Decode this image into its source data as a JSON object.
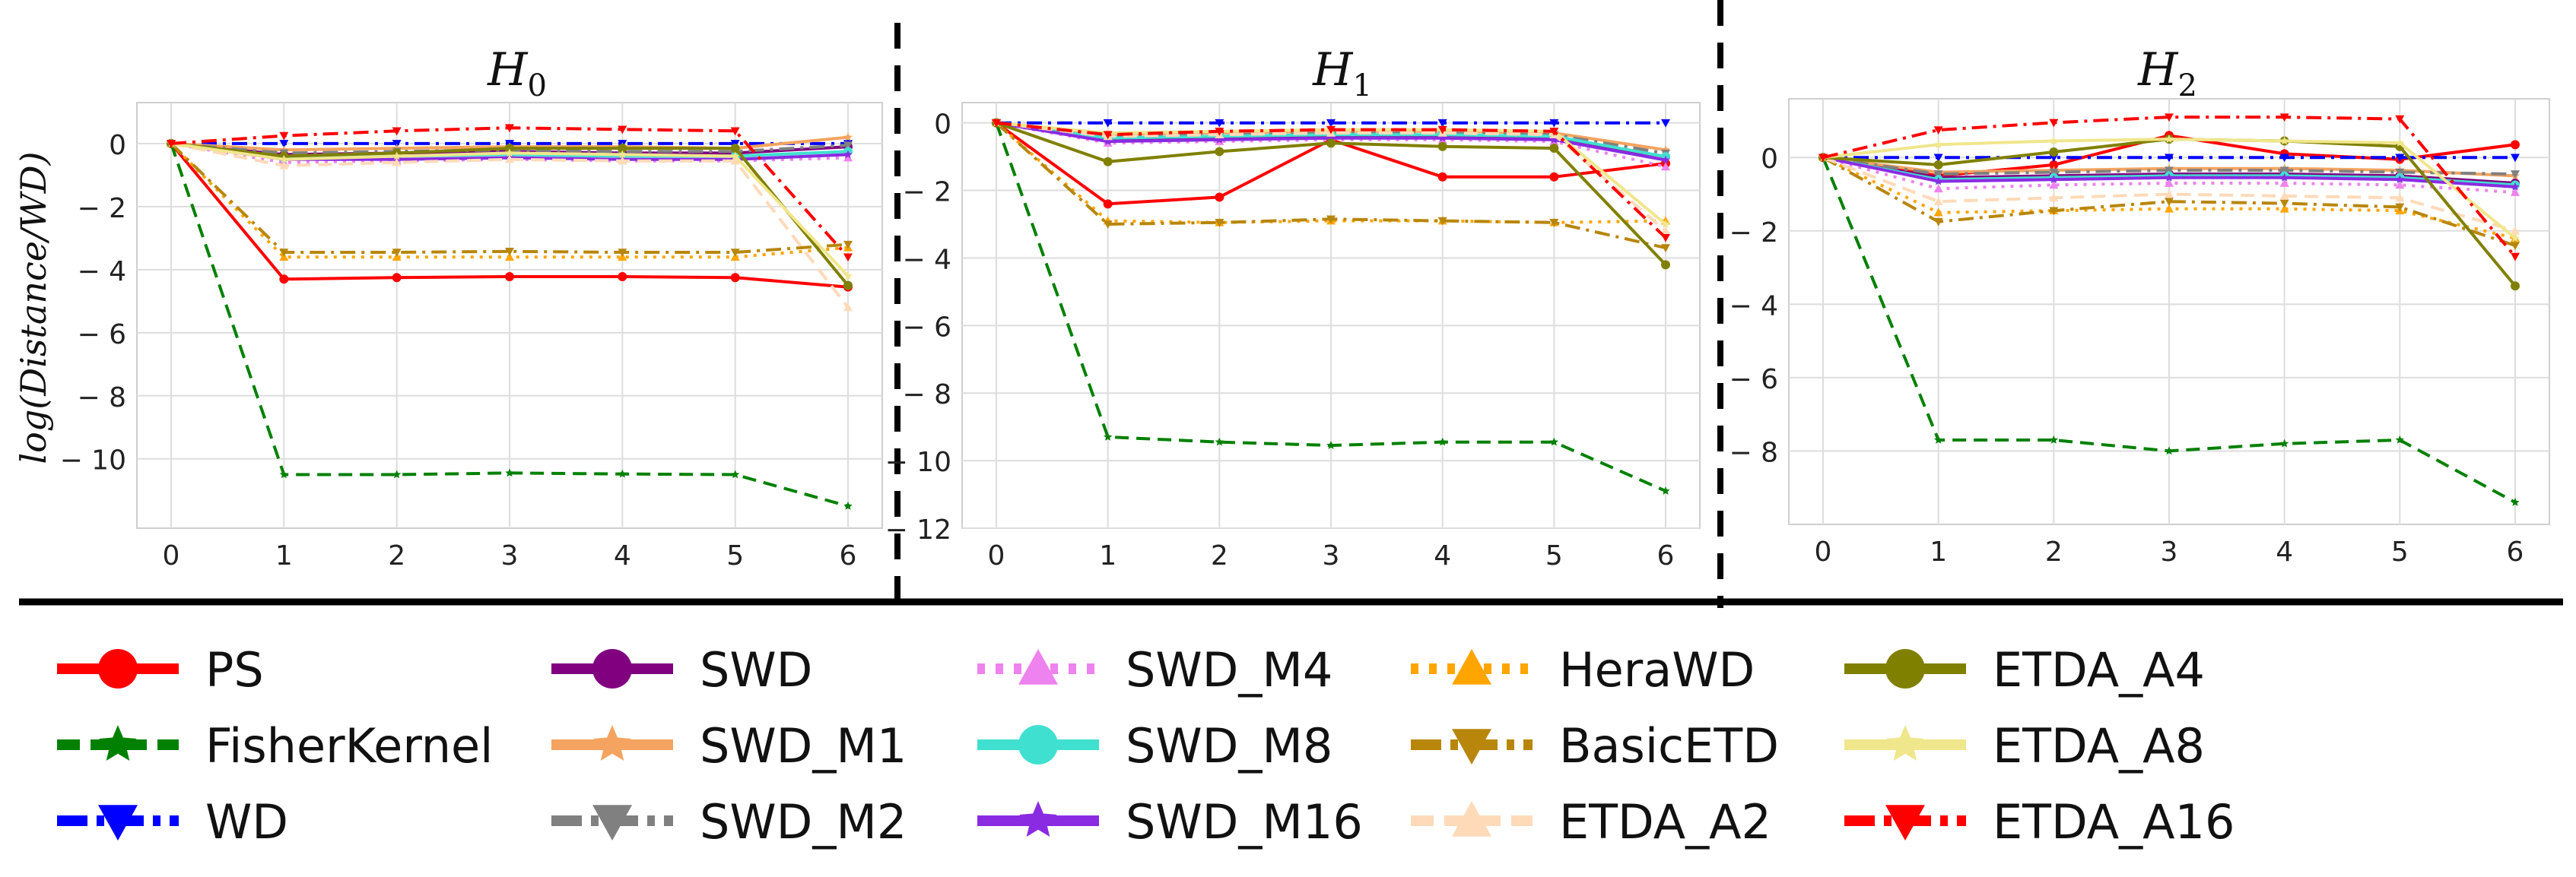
{
  "chart_data": [
    {
      "type": "line",
      "title": "H0",
      "title_main": "H",
      "title_sub": "0",
      "ylabel": "log(Distance/WD)",
      "xlabel": "",
      "x": [
        0,
        1,
        2,
        3,
        4,
        5,
        6
      ],
      "xticks": [
        "0",
        "1",
        "2",
        "3",
        "4",
        "5",
        "6"
      ],
      "ylim": [
        -12.2,
        1.3
      ],
      "yticks": [
        0,
        -2,
        -4,
        -6,
        -8,
        -10
      ],
      "ytick_labels": [
        "0",
        "− 2",
        "− 4",
        "− 6",
        "− 8",
        "− 10"
      ],
      "series": [
        {
          "name": "PS",
          "values": [
            0,
            -4.3,
            -4.25,
            -4.22,
            -4.22,
            -4.25,
            -4.55
          ]
        },
        {
          "name": "FisherKernel",
          "values": [
            0,
            -10.5,
            -10.5,
            -10.45,
            -10.48,
            -10.5,
            -11.5
          ]
        },
        {
          "name": "WD",
          "values": [
            0,
            0,
            0,
            0,
            0,
            0,
            0
          ]
        },
        {
          "name": "SWD",
          "values": [
            0,
            -0.35,
            -0.3,
            -0.25,
            -0.3,
            -0.3,
            -0.1
          ]
        },
        {
          "name": "SWD_M1",
          "values": [
            0,
            -0.2,
            -0.15,
            -0.1,
            -0.1,
            -0.15,
            0.2
          ]
        },
        {
          "name": "SWD_M2",
          "values": [
            0,
            -0.3,
            -0.25,
            -0.2,
            -0.25,
            -0.25,
            -0.05
          ]
        },
        {
          "name": "SWD_M4",
          "values": [
            0,
            -0.6,
            -0.55,
            -0.5,
            -0.55,
            -0.55,
            -0.45
          ]
        },
        {
          "name": "SWD_M8",
          "values": [
            0,
            -0.45,
            -0.4,
            -0.35,
            -0.4,
            -0.4,
            -0.25
          ]
        },
        {
          "name": "SWD_M16",
          "values": [
            0,
            -0.5,
            -0.5,
            -0.45,
            -0.5,
            -0.5,
            -0.35
          ]
        },
        {
          "name": "HeraWD",
          "values": [
            0,
            -3.6,
            -3.6,
            -3.6,
            -3.6,
            -3.6,
            -3.3
          ]
        },
        {
          "name": "BasicETD",
          "values": [
            0,
            -3.45,
            -3.45,
            -3.42,
            -3.45,
            -3.45,
            -3.2
          ]
        },
        {
          "name": "ETDA_A2",
          "values": [
            0,
            -0.7,
            -0.6,
            -0.5,
            -0.55,
            -0.55,
            -5.2
          ]
        },
        {
          "name": "ETDA_A4",
          "values": [
            0,
            -0.4,
            -0.3,
            -0.15,
            -0.15,
            -0.15,
            -4.5
          ]
        },
        {
          "name": "ETDA_A8",
          "values": [
            0,
            -0.5,
            -0.4,
            -0.3,
            -0.35,
            -0.4,
            -4.2
          ]
        },
        {
          "name": "ETDA_A16",
          "values": [
            0,
            0.25,
            0.4,
            0.5,
            0.45,
            0.4,
            -3.6
          ]
        }
      ]
    },
    {
      "type": "line",
      "title": "H1",
      "title_main": "H",
      "title_sub": "1",
      "ylabel": "",
      "xlabel": "",
      "x": [
        0,
        1,
        2,
        3,
        4,
        5,
        6
      ],
      "xticks": [
        "0",
        "1",
        "2",
        "3",
        "4",
        "5",
        "6"
      ],
      "ylim": [
        -12,
        0.6
      ],
      "yticks": [
        0,
        -2,
        -4,
        -6,
        -8,
        -10,
        -12
      ],
      "ytick_labels": [
        "0",
        "− 2",
        "− 4",
        "− 6",
        "− 8",
        "− 10",
        "− 12"
      ],
      "series": [
        {
          "name": "PS",
          "values": [
            0,
            -2.4,
            -2.2,
            -0.5,
            -1.6,
            -1.6,
            -1.2
          ]
        },
        {
          "name": "FisherKernel",
          "values": [
            0,
            -9.3,
            -9.45,
            -9.55,
            -9.45,
            -9.45,
            -10.9
          ]
        },
        {
          "name": "WD",
          "values": [
            0,
            0,
            0,
            0,
            0,
            0,
            0
          ]
        },
        {
          "name": "SWD",
          "values": [
            0,
            -0.5,
            -0.45,
            -0.4,
            -0.4,
            -0.45,
            -1.0
          ]
        },
        {
          "name": "SWD_M1",
          "values": [
            0,
            -0.35,
            -0.3,
            -0.25,
            -0.25,
            -0.3,
            -0.8
          ]
        },
        {
          "name": "SWD_M2",
          "values": [
            0,
            -0.4,
            -0.35,
            -0.3,
            -0.3,
            -0.35,
            -0.9
          ]
        },
        {
          "name": "SWD_M4",
          "values": [
            0,
            -0.6,
            -0.55,
            -0.5,
            -0.5,
            -0.55,
            -1.3
          ]
        },
        {
          "name": "SWD_M8",
          "values": [
            0,
            -0.45,
            -0.4,
            -0.35,
            -0.35,
            -0.4,
            -1.0
          ]
        },
        {
          "name": "SWD_M16",
          "values": [
            0,
            -0.55,
            -0.5,
            -0.45,
            -0.45,
            -0.5,
            -1.1
          ]
        },
        {
          "name": "HeraWD",
          "values": [
            0,
            -2.9,
            -2.95,
            -2.9,
            -2.9,
            -2.95,
            -2.9
          ]
        },
        {
          "name": "BasicETD",
          "values": [
            0,
            -3.0,
            -2.95,
            -2.85,
            -2.9,
            -2.95,
            -3.7
          ]
        },
        {
          "name": "ETDA_A2",
          "values": [
            0,
            -0.4,
            -0.35,
            -0.3,
            -0.3,
            -0.35,
            -3.2
          ]
        },
        {
          "name": "ETDA_A4",
          "values": [
            0,
            -1.15,
            -0.85,
            -0.6,
            -0.7,
            -0.75,
            -4.2
          ]
        },
        {
          "name": "ETDA_A8",
          "values": [
            0,
            -0.3,
            -0.25,
            -0.2,
            -0.2,
            -0.25,
            -3.0
          ]
        },
        {
          "name": "ETDA_A16",
          "values": [
            0,
            -0.35,
            -0.25,
            -0.2,
            -0.2,
            -0.25,
            -3.4
          ]
        }
      ]
    },
    {
      "type": "line",
      "title": "H2",
      "title_main": "H",
      "title_sub": "2",
      "ylabel": "",
      "xlabel": "",
      "x": [
        0,
        1,
        2,
        3,
        4,
        5,
        6
      ],
      "xticks": [
        "0",
        "1",
        "2",
        "3",
        "4",
        "5",
        "6"
      ],
      "ylim": [
        -10,
        1.6
      ],
      "yticks": [
        0,
        -2,
        -4,
        -6,
        -8
      ],
      "ytick_labels": [
        "0",
        "− 2",
        "− 4",
        "− 6",
        "− 8"
      ],
      "series": [
        {
          "name": "PS",
          "values": [
            0,
            -0.5,
            -0.2,
            0.6,
            0.1,
            -0.05,
            0.35
          ]
        },
        {
          "name": "FisherKernel",
          "values": [
            0,
            -7.7,
            -7.7,
            -8.0,
            -7.8,
            -7.7,
            -9.4
          ]
        },
        {
          "name": "WD",
          "values": [
            0,
            0,
            0,
            0,
            0,
            0,
            0
          ]
        },
        {
          "name": "SWD",
          "values": [
            0,
            -0.55,
            -0.5,
            -0.45,
            -0.45,
            -0.5,
            -0.7
          ]
        },
        {
          "name": "SWD_M1",
          "values": [
            0,
            -0.4,
            -0.35,
            -0.3,
            -0.3,
            -0.35,
            -0.5
          ]
        },
        {
          "name": "SWD_M2",
          "values": [
            0,
            -0.45,
            -0.4,
            -0.35,
            -0.35,
            -0.4,
            -0.45
          ]
        },
        {
          "name": "SWD_M4",
          "values": [
            0,
            -0.85,
            -0.75,
            -0.7,
            -0.7,
            -0.75,
            -0.95
          ]
        },
        {
          "name": "SWD_M8",
          "values": [
            0,
            -0.6,
            -0.55,
            -0.5,
            -0.5,
            -0.55,
            -0.75
          ]
        },
        {
          "name": "SWD_M16",
          "values": [
            0,
            -0.65,
            -0.6,
            -0.55,
            -0.55,
            -0.6,
            -0.8
          ]
        },
        {
          "name": "HeraWD",
          "values": [
            0,
            -1.5,
            -1.45,
            -1.4,
            -1.4,
            -1.45,
            -2.2
          ]
        },
        {
          "name": "BasicETD",
          "values": [
            0,
            -1.75,
            -1.45,
            -1.2,
            -1.25,
            -1.35,
            -2.4
          ]
        },
        {
          "name": "ETDA_A2",
          "values": [
            0,
            -1.2,
            -1.1,
            -1.0,
            -1.05,
            -1.1,
            -2.0
          ]
        },
        {
          "name": "ETDA_A4",
          "values": [
            0,
            -0.2,
            0.15,
            0.5,
            0.45,
            0.3,
            -3.5
          ]
        },
        {
          "name": "ETDA_A8",
          "values": [
            0,
            0.35,
            0.45,
            0.5,
            0.45,
            0.4,
            -2.2
          ]
        },
        {
          "name": "ETDA_A16",
          "values": [
            0,
            0.75,
            0.95,
            1.1,
            1.1,
            1.05,
            -2.7
          ]
        }
      ]
    }
  ],
  "legend": {
    "entries": [
      {
        "name": "PS",
        "color": "#ff0000",
        "marker": "circle",
        "dash": "solid"
      },
      {
        "name": "FisherKernel",
        "color": "#008000",
        "marker": "star",
        "dash": "dashed"
      },
      {
        "name": "WD",
        "color": "#0000ff",
        "marker": "triangle-down",
        "dash": "dashdot"
      },
      {
        "name": "SWD",
        "color": "#800080",
        "marker": "circle",
        "dash": "solid"
      },
      {
        "name": "SWD_M1",
        "color": "#f4a460",
        "marker": "star",
        "dash": "solid"
      },
      {
        "name": "SWD_M2",
        "color": "#808080",
        "marker": "triangle-down",
        "dash": "dashdot"
      },
      {
        "name": "SWD_M4",
        "color": "#ee82ee",
        "marker": "triangle-up",
        "dash": "dotted"
      },
      {
        "name": "SWD_M8",
        "color": "#40e0d0",
        "marker": "circle",
        "dash": "solid"
      },
      {
        "name": "SWD_M16",
        "color": "#8a2be2",
        "marker": "star",
        "dash": "solid"
      },
      {
        "name": "HeraWD",
        "color": "#ffa500",
        "marker": "triangle-up",
        "dash": "dotted"
      },
      {
        "name": "BasicETD",
        "color": "#b8860b",
        "marker": "triangle-down",
        "dash": "dashdot"
      },
      {
        "name": "ETDA_A2",
        "color": "#ffdab9",
        "marker": "triangle-up",
        "dash": "dashed"
      },
      {
        "name": "ETDA_A4",
        "color": "#808000",
        "marker": "circle",
        "dash": "solid"
      },
      {
        "name": "ETDA_A8",
        "color": "#f0e68c",
        "marker": "star",
        "dash": "solid"
      },
      {
        "name": "ETDA_A16",
        "color": "#ff0000",
        "marker": "triangle-down",
        "dash": "dashdot"
      }
    ]
  }
}
